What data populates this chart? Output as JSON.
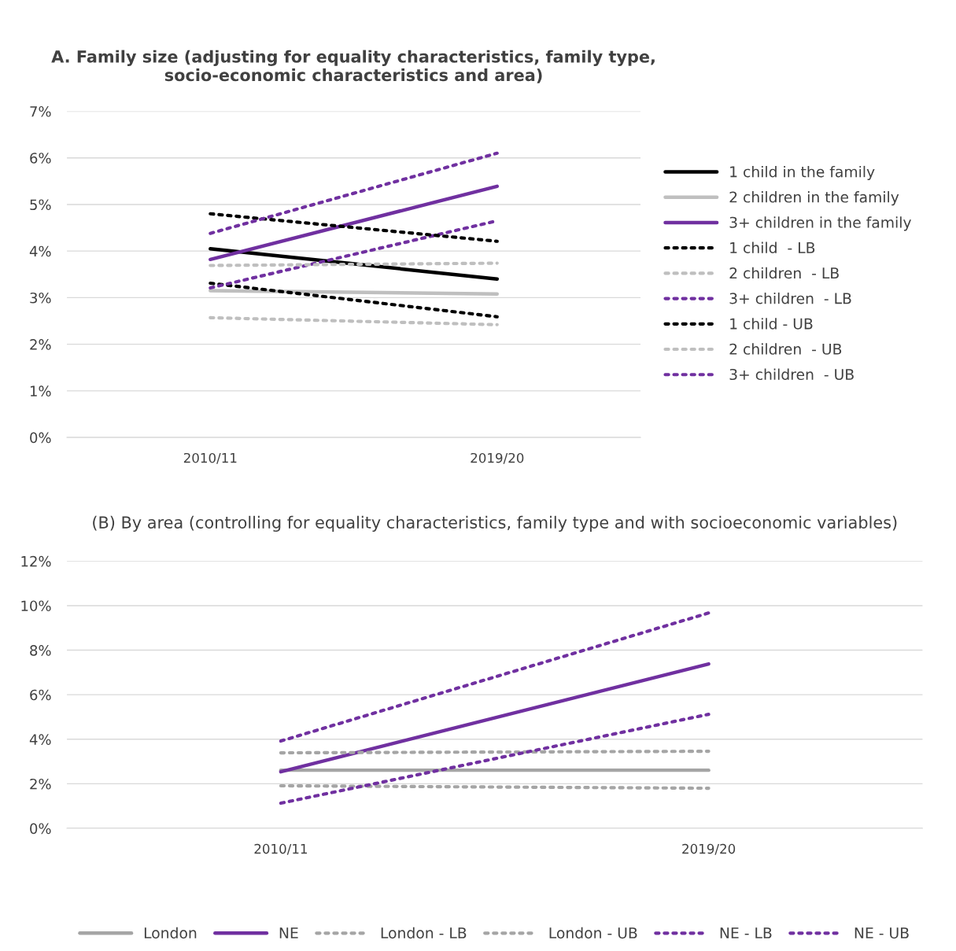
{
  "chart_data": [
    {
      "type": "line",
      "title": "A. Family size (adjusting for equality characteristics, family type, socio-economic characteristics and area)",
      "categories": [
        "2010/11",
        "2019/20"
      ],
      "ylim": [
        0,
        7
      ],
      "yticks": [
        {
          "value": 0,
          "label": "0%"
        },
        {
          "value": 1,
          "label": "1%"
        },
        {
          "value": 2,
          "label": "2%"
        },
        {
          "value": 3,
          "label": "3%"
        },
        {
          "value": 4,
          "label": "4%"
        },
        {
          "value": 5,
          "label": "5%"
        },
        {
          "value": 6,
          "label": "6%"
        },
        {
          "value": 7,
          "label": "7%"
        }
      ],
      "grid": "y",
      "legend": "right",
      "marker": "none",
      "series": [
        {
          "name": "1 child in the family",
          "color": "#000000",
          "line_style": "solid",
          "values": [
            4.05,
            3.4
          ]
        },
        {
          "name": "2 children in the family",
          "color": "#bfbfbf",
          "line_style": "solid",
          "values": [
            3.15,
            3.08
          ]
        },
        {
          "name": "3+ children in the family",
          "color": "#7030a0",
          "line_style": "solid",
          "values": [
            3.82,
            5.39
          ]
        },
        {
          "name": "1 child  - LB",
          "color": "#000000",
          "line_style": "dotted",
          "values": [
            3.31,
            2.59
          ]
        },
        {
          "name": "2 children  - LB",
          "color": "#bfbfbf",
          "line_style": "dotted",
          "values": [
            2.57,
            2.42
          ]
        },
        {
          "name": "3+ children  - LB",
          "color": "#7030a0",
          "line_style": "dotted",
          "values": [
            3.21,
            4.65
          ]
        },
        {
          "name": "1 child - UB",
          "color": "#000000",
          "line_style": "dotted",
          "values": [
            4.8,
            4.21
          ]
        },
        {
          "name": "2 children  - UB",
          "color": "#bfbfbf",
          "line_style": "dotted",
          "values": [
            3.69,
            3.74
          ]
        },
        {
          "name": "3+ children  - UB",
          "color": "#7030a0",
          "line_style": "dotted",
          "values": [
            4.38,
            6.1
          ]
        }
      ]
    },
    {
      "type": "line",
      "title": "(B) By area (controlling for equality characteristics, family type and with socioeconomic variables)",
      "categories": [
        "2010/11",
        "2019/20"
      ],
      "ylim": [
        0,
        12
      ],
      "yticks": [
        {
          "value": 0,
          "label": "0%"
        },
        {
          "value": 2,
          "label": "2%"
        },
        {
          "value": 4,
          "label": "4%"
        },
        {
          "value": 6,
          "label": "6%"
        },
        {
          "value": 8,
          "label": "8%"
        },
        {
          "value": 10,
          "label": "10%"
        },
        {
          "value": 12,
          "label": "12%"
        }
      ],
      "grid": "y",
      "legend": "bottom",
      "marker": "none",
      "series": [
        {
          "name": "London",
          "color": "#a5a5a5",
          "line_style": "solid",
          "values": [
            2.61,
            2.61
          ]
        },
        {
          "name": "NE",
          "color": "#7030a0",
          "line_style": "solid",
          "values": [
            2.54,
            7.38
          ]
        },
        {
          "name": "London - LB",
          "color": "#a5a5a5",
          "line_style": "dotted",
          "values": [
            1.91,
            1.8
          ]
        },
        {
          "name": "London - UB",
          "color": "#a5a5a5",
          "line_style": "dotted",
          "values": [
            3.39,
            3.46
          ]
        },
        {
          "name": "NE - LB",
          "color": "#7030a0",
          "line_style": "dotted",
          "values": [
            1.13,
            5.12
          ]
        },
        {
          "name": "NE - UB",
          "color": "#7030a0",
          "line_style": "dotted",
          "values": [
            3.92,
            9.67
          ]
        }
      ]
    }
  ]
}
